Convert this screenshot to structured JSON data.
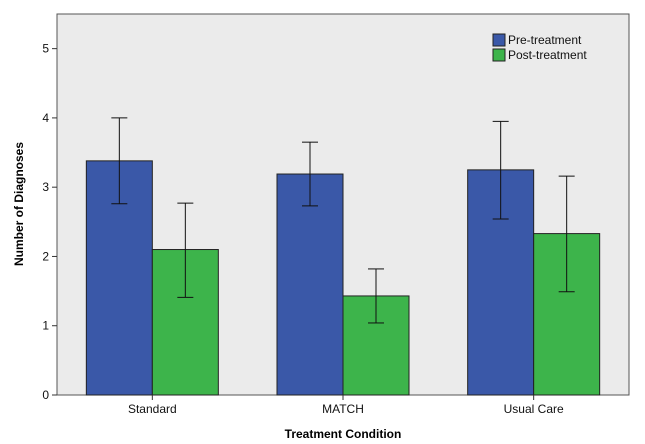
{
  "chart_data": {
    "type": "bar",
    "xlabel": "Treatment Condition",
    "ylabel": "Number of Diagnoses",
    "categories": [
      "Standard",
      "MATCH",
      "Usual Care"
    ],
    "ylim": [
      0,
      5.5
    ],
    "yticks": [
      0,
      1,
      2,
      3,
      4,
      5
    ],
    "grid": false,
    "legend_position": "top-right",
    "background_color": "#ebebeb",
    "series": [
      {
        "name": "Pre-treatment",
        "color": "#3a58a8",
        "values": [
          3.38,
          3.19,
          3.25
        ],
        "error_low": [
          2.76,
          2.73,
          2.54
        ],
        "error_high": [
          4.0,
          3.65,
          3.95
        ]
      },
      {
        "name": "Post-treatment",
        "color": "#3db44b",
        "values": [
          2.1,
          1.43,
          2.33
        ],
        "error_low": [
          1.41,
          1.04,
          1.49
        ],
        "error_high": [
          2.77,
          1.82,
          3.16
        ]
      }
    ]
  }
}
